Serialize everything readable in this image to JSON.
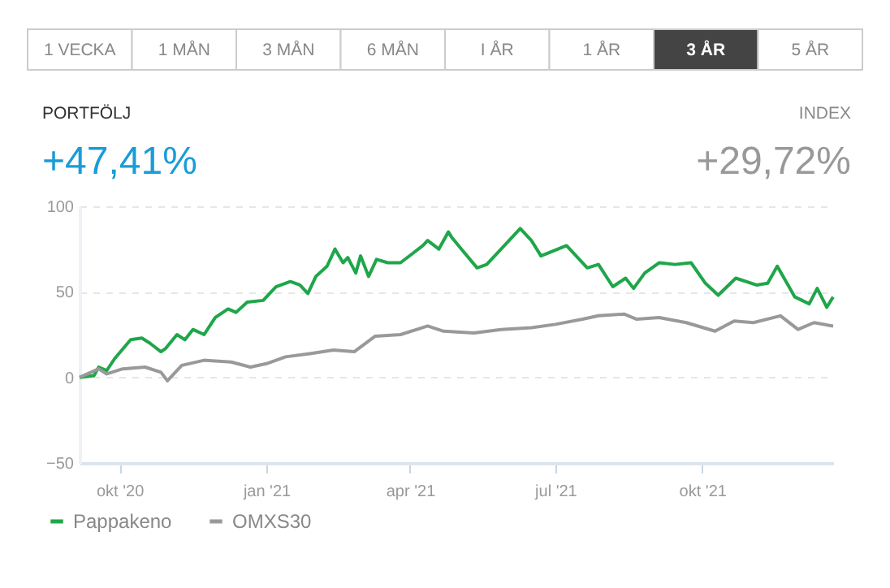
{
  "chart_data": {
    "type": "line",
    "annotations": [
      "1 VECKA",
      "1 MÅN",
      "3 MÅN",
      "6 MÅN",
      "I ÅR",
      "1 ÅR",
      "3 ÅR",
      "5 ÅR",
      "PORTFÖLJ",
      "+47,41%",
      "INDEX",
      "+29,72%"
    ],
    "xlim": [
      "2020-09-06",
      "2021-12-22"
    ],
    "xticks": [
      {
        "value": "2020-10-01",
        "label": "okt '20"
      },
      {
        "value": "2021-01-01",
        "label": "jan '21"
      },
      {
        "value": "2021-04-01",
        "label": "apr '21"
      },
      {
        "value": "2021-07-01",
        "label": "jul '21"
      },
      {
        "value": "2021-10-01",
        "label": "okt '21"
      }
    ],
    "ylim": [
      -50,
      100
    ],
    "yticks": [
      -50,
      0,
      50,
      100
    ],
    "grid": "y",
    "legend": "bottom left",
    "series": [
      {
        "name": "Pappakeno",
        "color": "#1fa64a",
        "x": [
          "2020-09-06",
          "2020-09-15",
          "2020-09-18",
          "2020-09-23",
          "2020-09-28",
          "2020-10-08",
          "2020-10-15",
          "2020-10-20",
          "2020-10-27",
          "2020-10-30",
          "2020-11-06",
          "2020-11-11",
          "2020-11-16",
          "2020-11-23",
          "2020-11-30",
          "2020-12-08",
          "2020-12-13",
          "2020-12-20",
          "2020-12-30",
          "2021-01-07",
          "2021-01-16",
          "2021-01-22",
          "2021-01-27",
          "2021-02-01",
          "2021-02-08",
          "2021-02-13",
          "2021-02-18",
          "2021-02-21",
          "2021-02-26",
          "2021-03-01",
          "2021-03-06",
          "2021-03-11",
          "2021-03-18",
          "2021-03-26",
          "2021-04-02",
          "2021-04-09",
          "2021-04-12",
          "2021-04-19",
          "2021-04-25",
          "2021-04-27",
          "2021-05-04",
          "2021-05-13",
          "2021-05-19",
          "2021-05-31",
          "2021-06-09",
          "2021-06-16",
          "2021-06-22",
          "2021-07-08",
          "2021-07-21",
          "2021-07-28",
          "2021-08-06",
          "2021-08-14",
          "2021-08-19",
          "2021-08-26",
          "2021-09-04",
          "2021-09-14",
          "2021-09-24",
          "2021-10-03",
          "2021-10-11",
          "2021-10-22",
          "2021-11-04",
          "2021-11-11",
          "2021-11-17",
          "2021-11-28",
          "2021-12-07",
          "2021-12-12",
          "2021-12-18",
          "2021-12-22"
        ],
        "values": [
          0,
          1,
          6,
          4,
          11,
          22,
          23,
          20,
          15,
          17,
          25,
          22,
          28,
          25,
          35,
          40,
          38,
          44,
          45,
          53,
          56,
          54,
          49,
          59,
          65,
          75,
          67,
          70,
          61,
          71,
          59,
          69,
          67,
          67,
          72,
          77,
          80,
          75,
          85,
          82,
          74,
          64,
          66,
          78,
          87,
          80,
          71,
          77,
          64,
          66,
          53,
          58,
          52,
          61,
          67,
          66,
          67,
          55,
          48,
          58,
          54,
          55,
          65,
          47,
          43,
          52,
          41,
          47
        ]
      },
      {
        "name": "OMXS30",
        "color": "#999999",
        "x": [
          "2020-09-06",
          "2020-09-18",
          "2020-09-23",
          "2020-10-03",
          "2020-10-17",
          "2020-10-27",
          "2020-10-31",
          "2020-11-09",
          "2020-11-23",
          "2020-12-10",
          "2020-12-22",
          "2021-01-01",
          "2021-01-13",
          "2021-01-29",
          "2021-02-12",
          "2021-02-25",
          "2021-03-10",
          "2021-03-26",
          "2021-04-12",
          "2021-04-22",
          "2021-05-11",
          "2021-05-28",
          "2021-06-16",
          "2021-07-01",
          "2021-07-18",
          "2021-07-28",
          "2021-08-13",
          "2021-08-21",
          "2021-09-04",
          "2021-09-21",
          "2021-10-09",
          "2021-10-21",
          "2021-11-02",
          "2021-11-19",
          "2021-11-30",
          "2021-12-10",
          "2021-12-22"
        ],
        "values": [
          0,
          5,
          2,
          5,
          6,
          3,
          -2,
          7,
          10,
          9,
          6,
          8,
          12,
          14,
          16,
          15,
          24,
          25,
          30,
          27,
          26,
          28,
          29,
          31,
          34,
          36,
          37,
          34,
          35,
          32,
          27,
          33,
          32,
          36,
          28,
          32,
          30
        ]
      }
    ]
  }
}
